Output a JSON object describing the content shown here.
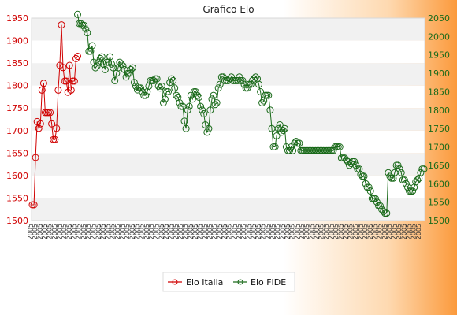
{
  "chart_data": {
    "type": "line",
    "title": "Grafico Elo",
    "y_left": {
      "ylim": [
        1500,
        1950
      ],
      "ticks": [
        1500,
        1550,
        1600,
        1650,
        1700,
        1750,
        1800,
        1850,
        1900,
        1950
      ]
    },
    "y_right": {
      "ylim": [
        1500,
        2050
      ],
      "ticks": [
        1500,
        1550,
        1600,
        1650,
        1700,
        1750,
        1800,
        1850,
        1900,
        1950,
        2000,
        2050
      ]
    },
    "grid": "horizontal bands",
    "legend_position": "bottom-center",
    "series": [
      {
        "name": "Elo Italia",
        "axis": "left",
        "color": "#d00000",
        "x": [
          0,
          1,
          2,
          3,
          4,
          5,
          6,
          7,
          8,
          9,
          10,
          11,
          12,
          13,
          14,
          15,
          16,
          17,
          18,
          19,
          20,
          21,
          22,
          23,
          24,
          25,
          26,
          27,
          28
        ],
        "values": [
          1535,
          1535,
          1640,
          1720,
          1705,
          1715,
          1790,
          1805,
          1740,
          1740,
          1740,
          1740,
          1715,
          1680,
          1680,
          1705,
          1790,
          1845,
          1935,
          1840,
          1810,
          1810,
          1785,
          1845,
          1790,
          1810,
          1810,
          1860,
          1865
        ]
      },
      {
        "name": "Elo FIDE",
        "axis": "right",
        "color": "#1a6a1a",
        "x_start": 28,
        "values": [
          2060,
          2035,
          2035,
          2030,
          2030,
          2020,
          2010,
          1960,
          1960,
          1975,
          1930,
          1915,
          1920,
          1930,
          1940,
          1945,
          1925,
          1910,
          1930,
          1930,
          1945,
          1925,
          1915,
          1880,
          1900,
          1915,
          1930,
          1925,
          1920,
          1910,
          1890,
          1900,
          1900,
          1910,
          1915,
          1875,
          1865,
          1855,
          1860,
          1860,
          1850,
          1840,
          1840,
          1850,
          1865,
          1880,
          1880,
          1880,
          1885,
          1885,
          1865,
          1860,
          1865,
          1820,
          1830,
          1850,
          1850,
          1875,
          1885,
          1880,
          1860,
          1840,
          1835,
          1820,
          1810,
          1810,
          1770,
          1750,
          1800,
          1810,
          1840,
          1830,
          1850,
          1850,
          1840,
          1835,
          1810,
          1800,
          1790,
          1760,
          1740,
          1750,
          1800,
          1830,
          1840,
          1815,
          1820,
          1860,
          1870,
          1890,
          1890,
          1880,
          1880,
          1880,
          1885,
          1890,
          1880,
          1880,
          1880,
          1880,
          1890,
          1880,
          1880,
          1870,
          1860,
          1860,
          1870,
          1870,
          1880,
          1885,
          1890,
          1885,
          1870,
          1850,
          1820,
          1825,
          1840,
          1840,
          1840,
          1800,
          1750,
          1700,
          1700,
          1730,
          1750,
          1760,
          1740,
          1745,
          1750,
          1700,
          1690,
          1690,
          1700,
          1690,
          1710,
          1715,
          1710,
          1710,
          1690,
          1690,
          1690,
          1690,
          1690,
          1690,
          1690,
          1690,
          1690,
          1690,
          1690,
          1690,
          1690,
          1690,
          1690,
          1690,
          1690,
          1690,
          1690,
          1690,
          1690,
          1700,
          1700,
          1700,
          1700,
          1670,
          1670,
          1670,
          1665,
          1660,
          1650,
          1655,
          1660,
          1660,
          1650,
          1640,
          1640,
          1625,
          1620,
          1620,
          1600,
          1590,
          1590,
          1580,
          1560,
          1560,
          1560,
          1550,
          1540,
          1540,
          1530,
          1525,
          1520,
          1520,
          1630,
          1620,
          1615,
          1615,
          1630,
          1650,
          1650,
          1640,
          1630,
          1610,
          1610,
          1600,
          1590,
          1580,
          1580,
          1580,
          1590,
          1605,
          1610,
          1615,
          1630,
          1640,
          1640
        ]
      }
    ],
    "x_tick_label": "2005"
  },
  "legend": {
    "italia_label": "Elo Italia",
    "fide_label": "Elo FIDE"
  }
}
